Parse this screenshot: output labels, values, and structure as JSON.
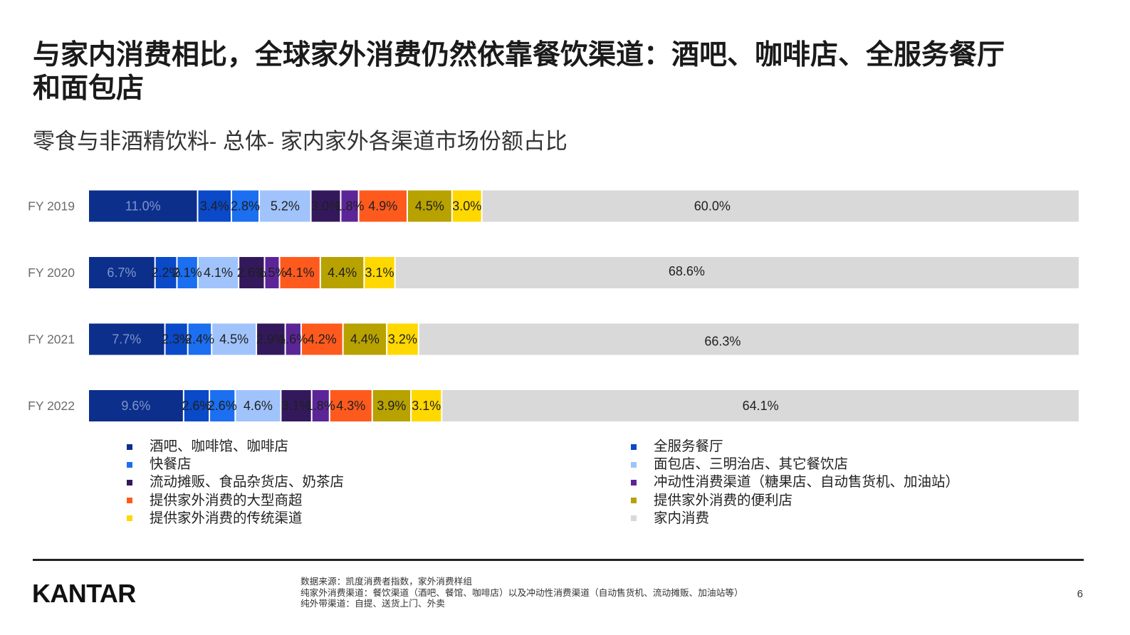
{
  "slide": {
    "title_lines": [
      "与家内消费相比，全球家外消费仍然依靠餐饮渠道：酒吧、咖啡店、全服务餐厅",
      "和面包店"
    ],
    "logo_text": "KANTAR",
    "footnotes": [
      "数据来源：凯度消费者指数，家外消费样组",
      "纯家外消费渠道：餐饮渠道（酒吧、餐馆、咖啡店）以及冲动性消费渠道（自动售货机、流动摊贩、加油站等）",
      "纯外带渠道：自提、送货上门、外卖"
    ],
    "page_number": "6"
  },
  "chart_data": {
    "type": "bar",
    "horizontal": true,
    "stacked": true,
    "title": "零食与非酒精饮料- 总体- 家内家外各渠道市场份额占比",
    "categories": [
      "FY 2019",
      "FY 2020",
      "FY 2021",
      "FY 2022"
    ],
    "xlim": [
      0,
      100
    ],
    "legend": "bottom",
    "series": [
      {
        "name": "酒吧、咖啡馆、咖啡店",
        "color": "#0c2f8c",
        "label_color": "#8094c8",
        "values": [
          11.0,
          6.7,
          7.7,
          9.6
        ],
        "labels": [
          "11.0%",
          "6.7%",
          "7.7%",
          "9.6%"
        ]
      },
      {
        "name": "全服务餐厅",
        "color": "#0a49c7",
        "label_color": "#1f1f1f",
        "values": [
          3.4,
          2.2,
          2.3,
          2.6
        ],
        "labels": [
          "3.4%",
          "2.2%",
          "2.3%",
          "2.6%"
        ]
      },
      {
        "name": "快餐店",
        "color": "#1b6ff0",
        "label_color": "#1f1f1f",
        "values": [
          2.8,
          2.1,
          2.4,
          2.6
        ],
        "labels": [
          "2.8%",
          "2.1%",
          "2.4%",
          "2.6%"
        ]
      },
      {
        "name": "面包店、三明治店、其它餐饮店",
        "color": "#a0c3fb",
        "label_color": "#1f1f1f",
        "values": [
          5.2,
          4.1,
          4.5,
          4.6
        ],
        "labels": [
          "5.2%",
          "4.1%",
          "4.5%",
          "4.6%"
        ]
      },
      {
        "name": "流动摊贩、食品杂货店、奶茶店",
        "color": "#33195c",
        "label_color": "#1f1f1f",
        "values": [
          3.0,
          2.6,
          2.9,
          3.1
        ],
        "labels": [
          "3.0%",
          "2.6%",
          "2.9%",
          "3.1%"
        ]
      },
      {
        "name": "冲动性消费渠道（糖果店、自动售货机、加油站）",
        "color": "#5b2597",
        "label_color": "#1f1f1f",
        "values": [
          1.8,
          1.5,
          1.6,
          1.8
        ],
        "labels": [
          "1.8%",
          "1.5%",
          "1.6%",
          "1.8%"
        ]
      },
      {
        "name": "提供家外消费的大型商超",
        "color": "#ff5a1e",
        "label_color": "#1f1f1f",
        "values": [
          4.9,
          4.1,
          4.2,
          4.3
        ],
        "labels": [
          "4.9%",
          "4.1%",
          "4.2%",
          "4.3%"
        ]
      },
      {
        "name": "提供家外消费的便利店",
        "color": "#b7a200",
        "label_color": "#1f1f1f",
        "values": [
          4.5,
          4.4,
          4.4,
          3.9
        ],
        "labels": [
          "4.5%",
          "4.4%",
          "4.4%",
          "3.9%"
        ]
      },
      {
        "name": "提供家外消费的传统渠道",
        "color": "#ffd800",
        "label_color": "#1f1f1f",
        "values": [
          3.0,
          3.1,
          3.2,
          3.1
        ],
        "labels": [
          "3.0%",
          "3.1%",
          "3.2%",
          "3.1%"
        ]
      },
      {
        "name": "家内消费",
        "color": "#d9d9d9",
        "label_color": "#1f1f1f",
        "values": [
          60.0,
          68.6,
          66.3,
          64.1
        ],
        "labels": [
          "60.0%",
          "68.6%",
          "66.3%",
          "64.1%"
        ]
      }
    ]
  }
}
